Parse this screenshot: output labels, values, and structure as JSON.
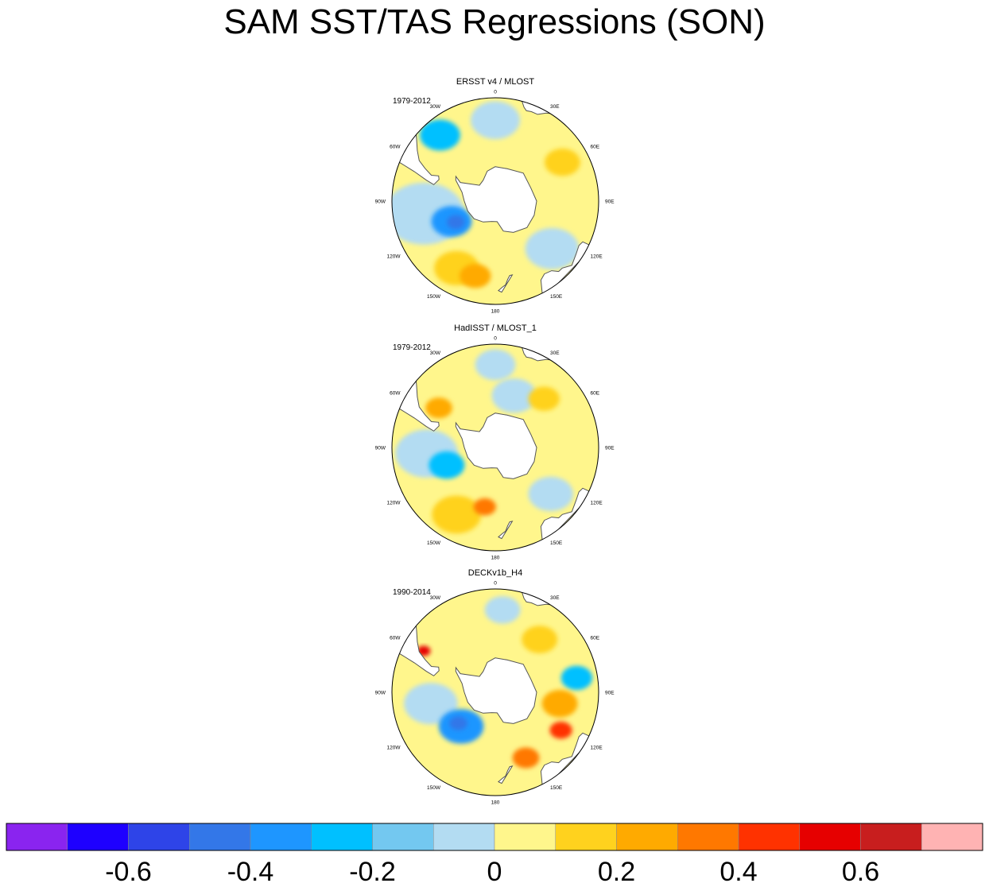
{
  "title": "SAM SST/TAS Regressions (SON)",
  "chart_data": {
    "type": "heatmap",
    "projection": "south polar stereographic",
    "title": "SAM SST/TAS Regressions (SON)",
    "panels": [
      {
        "name": "ERSST v4 / MLOST",
        "period": "1979-2012",
        "features": [
          {
            "kind": "blob",
            "sign": "neg",
            "lon": 0,
            "lat": -43,
            "radius_deg": 11,
            "level": -0.05
          },
          {
            "kind": "blob",
            "sign": "neg",
            "lon": -40,
            "lat": -40,
            "radius_deg": 9,
            "level": -0.25
          },
          {
            "kind": "blob",
            "sign": "neg",
            "lon": -100,
            "lat": -48,
            "radius_deg": 18,
            "level": -0.05
          },
          {
            "kind": "blob",
            "sign": "neg",
            "lon": -115,
            "lat": -62,
            "radius_deg": 9,
            "level": -0.35
          },
          {
            "kind": "blob",
            "sign": "neg",
            "lon": -118,
            "lat": -64,
            "radius_deg": 4,
            "level": -0.45
          },
          {
            "kind": "blob",
            "sign": "neg",
            "lon": 130,
            "lat": -47,
            "radius_deg": 12,
            "level": -0.05
          },
          {
            "kind": "blob",
            "sign": "pos",
            "lon": 60,
            "lat": -45,
            "radius_deg": 8,
            "level": 0.15
          },
          {
            "kind": "blob",
            "sign": "pos",
            "lon": -150,
            "lat": -45,
            "radius_deg": 10,
            "level": 0.15
          },
          {
            "kind": "blob",
            "sign": "pos",
            "lon": -165,
            "lat": -45,
            "radius_deg": 7,
            "level": 0.25
          }
        ]
      },
      {
        "name": "HadISST / MLOST_1",
        "period": "1979-2012",
        "features": [
          {
            "kind": "blob",
            "sign": "neg",
            "lon": 0,
            "lat": -42,
            "radius_deg": 9,
            "level": -0.05
          },
          {
            "kind": "blob",
            "sign": "neg",
            "lon": 20,
            "lat": -58,
            "radius_deg": 10,
            "level": -0.05
          },
          {
            "kind": "blob",
            "sign": "neg",
            "lon": -95,
            "lat": -50,
            "radius_deg": 14,
            "level": -0.05
          },
          {
            "kind": "blob",
            "sign": "neg",
            "lon": -110,
            "lat": -60,
            "radius_deg": 8,
            "level": -0.25
          },
          {
            "kind": "blob",
            "sign": "neg",
            "lon": 130,
            "lat": -48,
            "radius_deg": 10,
            "level": -0.05
          },
          {
            "kind": "blob",
            "sign": "pos",
            "lon": -55,
            "lat": -50,
            "radius_deg": 6,
            "level": 0.25
          },
          {
            "kind": "blob",
            "sign": "pos",
            "lon": 45,
            "lat": -50,
            "radius_deg": 7,
            "level": 0.15
          },
          {
            "kind": "blob",
            "sign": "pos",
            "lon": -150,
            "lat": -45,
            "radius_deg": 11,
            "level": 0.15
          },
          {
            "kind": "blob",
            "sign": "pos",
            "lon": -170,
            "lat": -55,
            "radius_deg": 5,
            "level": 0.35
          }
        ]
      },
      {
        "name": "DECKv1b_H4",
        "period": "1990-2014",
        "features": [
          {
            "kind": "blob",
            "sign": "neg",
            "lon": 5,
            "lat": -42,
            "radius_deg": 8,
            "level": -0.05
          },
          {
            "kind": "blob",
            "sign": "neg",
            "lon": 80,
            "lat": -42,
            "radius_deg": 7,
            "level": -0.25
          },
          {
            "kind": "blob",
            "sign": "neg",
            "lon": -100,
            "lat": -52,
            "radius_deg": 12,
            "level": -0.05
          },
          {
            "kind": "blob",
            "sign": "neg",
            "lon": -135,
            "lat": -62,
            "radius_deg": 10,
            "level": -0.35
          },
          {
            "kind": "blob",
            "sign": "neg",
            "lon": -130,
            "lat": -62,
            "radius_deg": 4,
            "level": -0.45
          },
          {
            "kind": "blob",
            "sign": "pos",
            "lon": 100,
            "lat": -52,
            "radius_deg": 8,
            "level": 0.25
          },
          {
            "kind": "blob",
            "sign": "pos",
            "lon": 120,
            "lat": -46,
            "radius_deg": 5,
            "level": 0.45
          },
          {
            "kind": "blob",
            "sign": "pos",
            "lon": 155,
            "lat": -48,
            "radius_deg": 6,
            "level": 0.35
          },
          {
            "kind": "blob",
            "sign": "pos",
            "lon": -60,
            "lat": -42,
            "radius_deg": 3,
            "level": 0.55
          },
          {
            "kind": "blob",
            "sign": "pos",
            "lon": 40,
            "lat": -50,
            "radius_deg": 8,
            "level": 0.15
          }
        ]
      }
    ],
    "lon_labels": [
      "0",
      "30E",
      "60E",
      "90E",
      "120E",
      "150E",
      "180",
      "150W",
      "120W",
      "90W",
      "60W",
      "30W"
    ],
    "colorbar": {
      "levels": [
        -0.7,
        -0.6,
        -0.5,
        -0.4,
        -0.3,
        -0.2,
        -0.1,
        0,
        0.1,
        0.2,
        0.3,
        0.4,
        0.5,
        0.6,
        0.7
      ],
      "colors": [
        "#8a24ef",
        "#1e00ff",
        "#2e44e8",
        "#3377e8",
        "#1e96ff",
        "#00c0ff",
        "#73c8f0",
        "#b3dcf2",
        "#fff68c",
        "#ffd21e",
        "#ffaa00",
        "#ff7800",
        "#ff3200",
        "#e60000",
        "#c81e1e",
        "#ffb3b3"
      ],
      "labels": [
        "-0.6",
        "-0.4",
        "-0.2",
        "0",
        "0.2",
        "0.4",
        "0.6"
      ]
    }
  }
}
